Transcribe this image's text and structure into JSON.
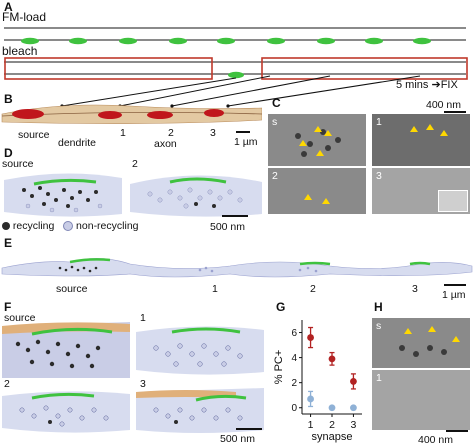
{
  "panels": {
    "A": {
      "label": "A",
      "fm_load_label": "FM-load",
      "bleach_label": "bleach",
      "timing_label": "5 mins",
      "fix_label": "FIX"
    },
    "B": {
      "label": "B",
      "source_label": "source",
      "dendrite_label": "dendrite",
      "axon_label": "axon",
      "synapse_labels": [
        "1",
        "2",
        "3"
      ],
      "scale_label": "1 µm"
    },
    "C": {
      "label": "C",
      "scale_label": "400 nm",
      "tile_labels": [
        "s",
        "1",
        "2",
        "3"
      ]
    },
    "D": {
      "label": "D",
      "source_label": "source",
      "tile2_label": "2",
      "legend": [
        "recycling",
        "non-recycling"
      ],
      "scale_label": "500 nm"
    },
    "E": {
      "label": "E",
      "source_label": "source",
      "synapse_labels": [
        "1",
        "2",
        "3"
      ],
      "scale_label": "1 µm"
    },
    "F": {
      "label": "F",
      "tile_labels": [
        "source",
        "1",
        "2",
        "3"
      ],
      "scale_label": "500 nm"
    },
    "G": {
      "label": "G"
    },
    "H": {
      "label": "H",
      "tile_labels": [
        "s",
        "1"
      ],
      "scale_label": "400 nm"
    }
  },
  "colors": {
    "recycling": "#2b2b2b",
    "non_recycling": "#c9cde6",
    "red_point": "#b22222",
    "blue_point": "#8fb1d6",
    "frame_red": "#c0392b",
    "synapse_green": "#3fc23f",
    "dendrite_orange": "#d9a36b"
  },
  "chart_data": {
    "type": "scatter",
    "xlabel": "synapse",
    "ylabel": "% PC+",
    "xticks": [
      "1",
      "2",
      "3"
    ],
    "yticks": [
      0,
      2,
      4,
      6
    ],
    "ylim": [
      -0.5,
      7
    ],
    "series": [
      {
        "color": "#b22222",
        "x": [
          1,
          2,
          3
        ],
        "y": [
          5.6,
          3.9,
          2.1
        ],
        "err": [
          0.8,
          0.5,
          0.6
        ]
      },
      {
        "color": "#8fb1d6",
        "x": [
          1,
          2,
          3
        ],
        "y": [
          0.7,
          0.0,
          0.0
        ],
        "err": [
          0.6,
          0,
          0
        ]
      }
    ]
  }
}
